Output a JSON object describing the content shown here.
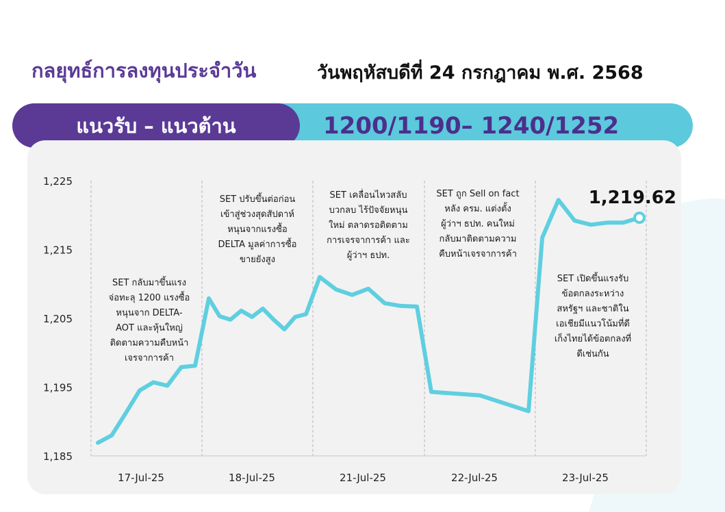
{
  "header": {
    "title": "กลยุทธ์การลงทุนประจำวัน",
    "date": "วันพฤหัสบดีที่ 24 กรกฎาคม พ.ศ. 2568"
  },
  "range": {
    "label": "แนวรับ – แนวต้าน",
    "value": "1200/1190– 1240/1252"
  },
  "colors": {
    "purple": "#5b3a96",
    "cyan": "#5cc9dc",
    "line": "#5fcfe0",
    "card": "#f2f2f3"
  },
  "annotations": [
    "SET กลับมาขึ้นแรง\nจ่อทะลุ 1200 แรงซื้อ\nหนุนจาก DELTA-\nAOT และหุ้นใหญ่\nติดตามความคืบหน้า\nเจรจาการค้า",
    "SET ปรับขึ้นต่อก่อน\nเข้าสู่ช่วงสุดสัปดาห์\nหนุนจากแรงซื้อ\nDELTA มูลค่าการซื้อ\nขายยังสูง",
    "SET เคลื่อนไหวสลับ\nบวกลบ ไร้ปัจจัยหนุน\nใหม่ ตลาดรอติดตาม\nการเจรจาการค้า และ\nผู้ว่าฯ ธปท.",
    "SET ถูก Sell on fact\nหลัง ครม. แต่งตั้ง\nผู้ว่าฯ ธปท. คนใหม่\nกลับมาติดตามความ\nคืบหน้าเจรจาการค้า",
    "SET เปิดขึ้นแรงรับ\nข้อตกลงระหว่าง\nสหรัฐฯ และชาติใน\nเอเชียมีแนวโน้มที่ดี\nเก็งไทยได้ข้อตกลงที่\nดีเช่นกัน"
  ],
  "chart_data": {
    "type": "line",
    "ylim": [
      1185,
      1225
    ],
    "yticks": [
      "1,225",
      "1,215",
      "1,205",
      "1,195",
      "1,185"
    ],
    "ytick_values": [
      1225,
      1215,
      1205,
      1195,
      1185
    ],
    "categories": [
      "17-Jul-25",
      "18-Jul-25",
      "21-Jul-25",
      "22-Jul-25",
      "23-Jul-25"
    ],
    "last_value_label": "1,219.62",
    "series": [
      {
        "values": [
          [
            1186.9,
            1188.0,
            1191.2,
            1194.5,
            1195.7,
            1195.2,
            1197.9,
            1198.1
          ],
          [
            1207.9,
            1205.3,
            1204.8,
            1206.1,
            1205.2,
            1206.4,
            1204.8,
            1203.4,
            1205.2,
            1205.6
          ],
          [
            1211.0,
            1209.2,
            1208.4,
            1209.3,
            1207.2,
            1206.8,
            1206.7
          ],
          [
            1194.3,
            1193.8,
            1191.5
          ],
          [
            1216.7,
            1222.2,
            1219.2,
            1218.6,
            1218.9,
            1218.9,
            1219.62
          ]
        ]
      }
    ]
  }
}
